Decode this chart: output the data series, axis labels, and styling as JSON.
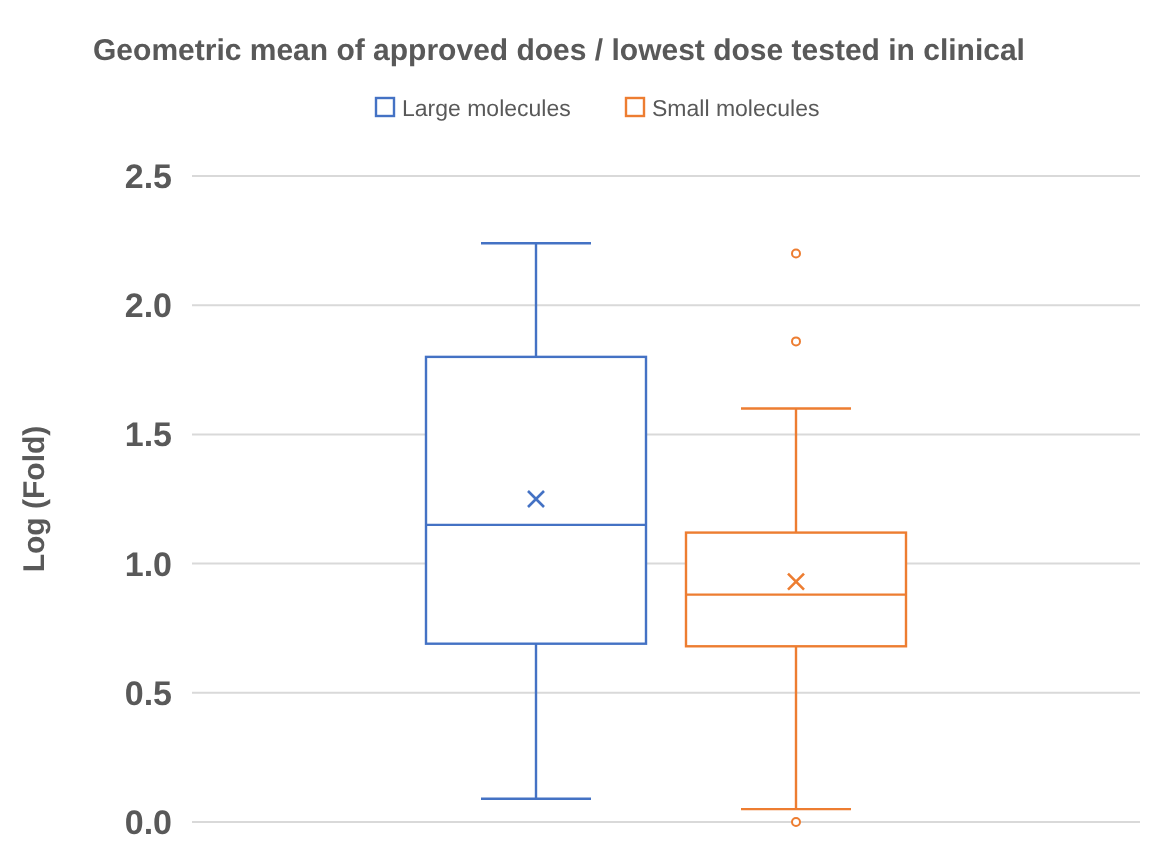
{
  "chart_data": {
    "type": "box",
    "title": "Geometric mean of approved does / lowest dose tested in clinical",
    "ylabel": "Log (Fold)",
    "categories": [
      null
    ],
    "series": [
      {
        "name": "Large molecules",
        "color": "#4472c4",
        "boxes": [
          {
            "low": 0.09,
            "q1": 0.69,
            "median": 1.15,
            "q3": 1.8,
            "high": 2.24,
            "mean": 1.25
          }
        ]
      },
      {
        "name": "Small molecules",
        "color": "#ed7d31",
        "boxes": [
          {
            "low": 0.05,
            "q1": 0.68,
            "median": 0.88,
            "q3": 1.12,
            "high": 1.6,
            "mean": 0.93,
            "outliers": [
              2.2,
              1.86,
              0
            ]
          }
        ]
      }
    ],
    "ylim": [
      0,
      2.5
    ],
    "yticks": [
      {
        "value": 0,
        "label": "0.0"
      },
      0.5,
      {
        "value": 1,
        "label": "1.0"
      },
      1.5,
      {
        "value": 2,
        "label": "2.0"
      },
      2.5
    ],
    "grid": "y",
    "legend": "top",
    "marker": "cross"
  }
}
